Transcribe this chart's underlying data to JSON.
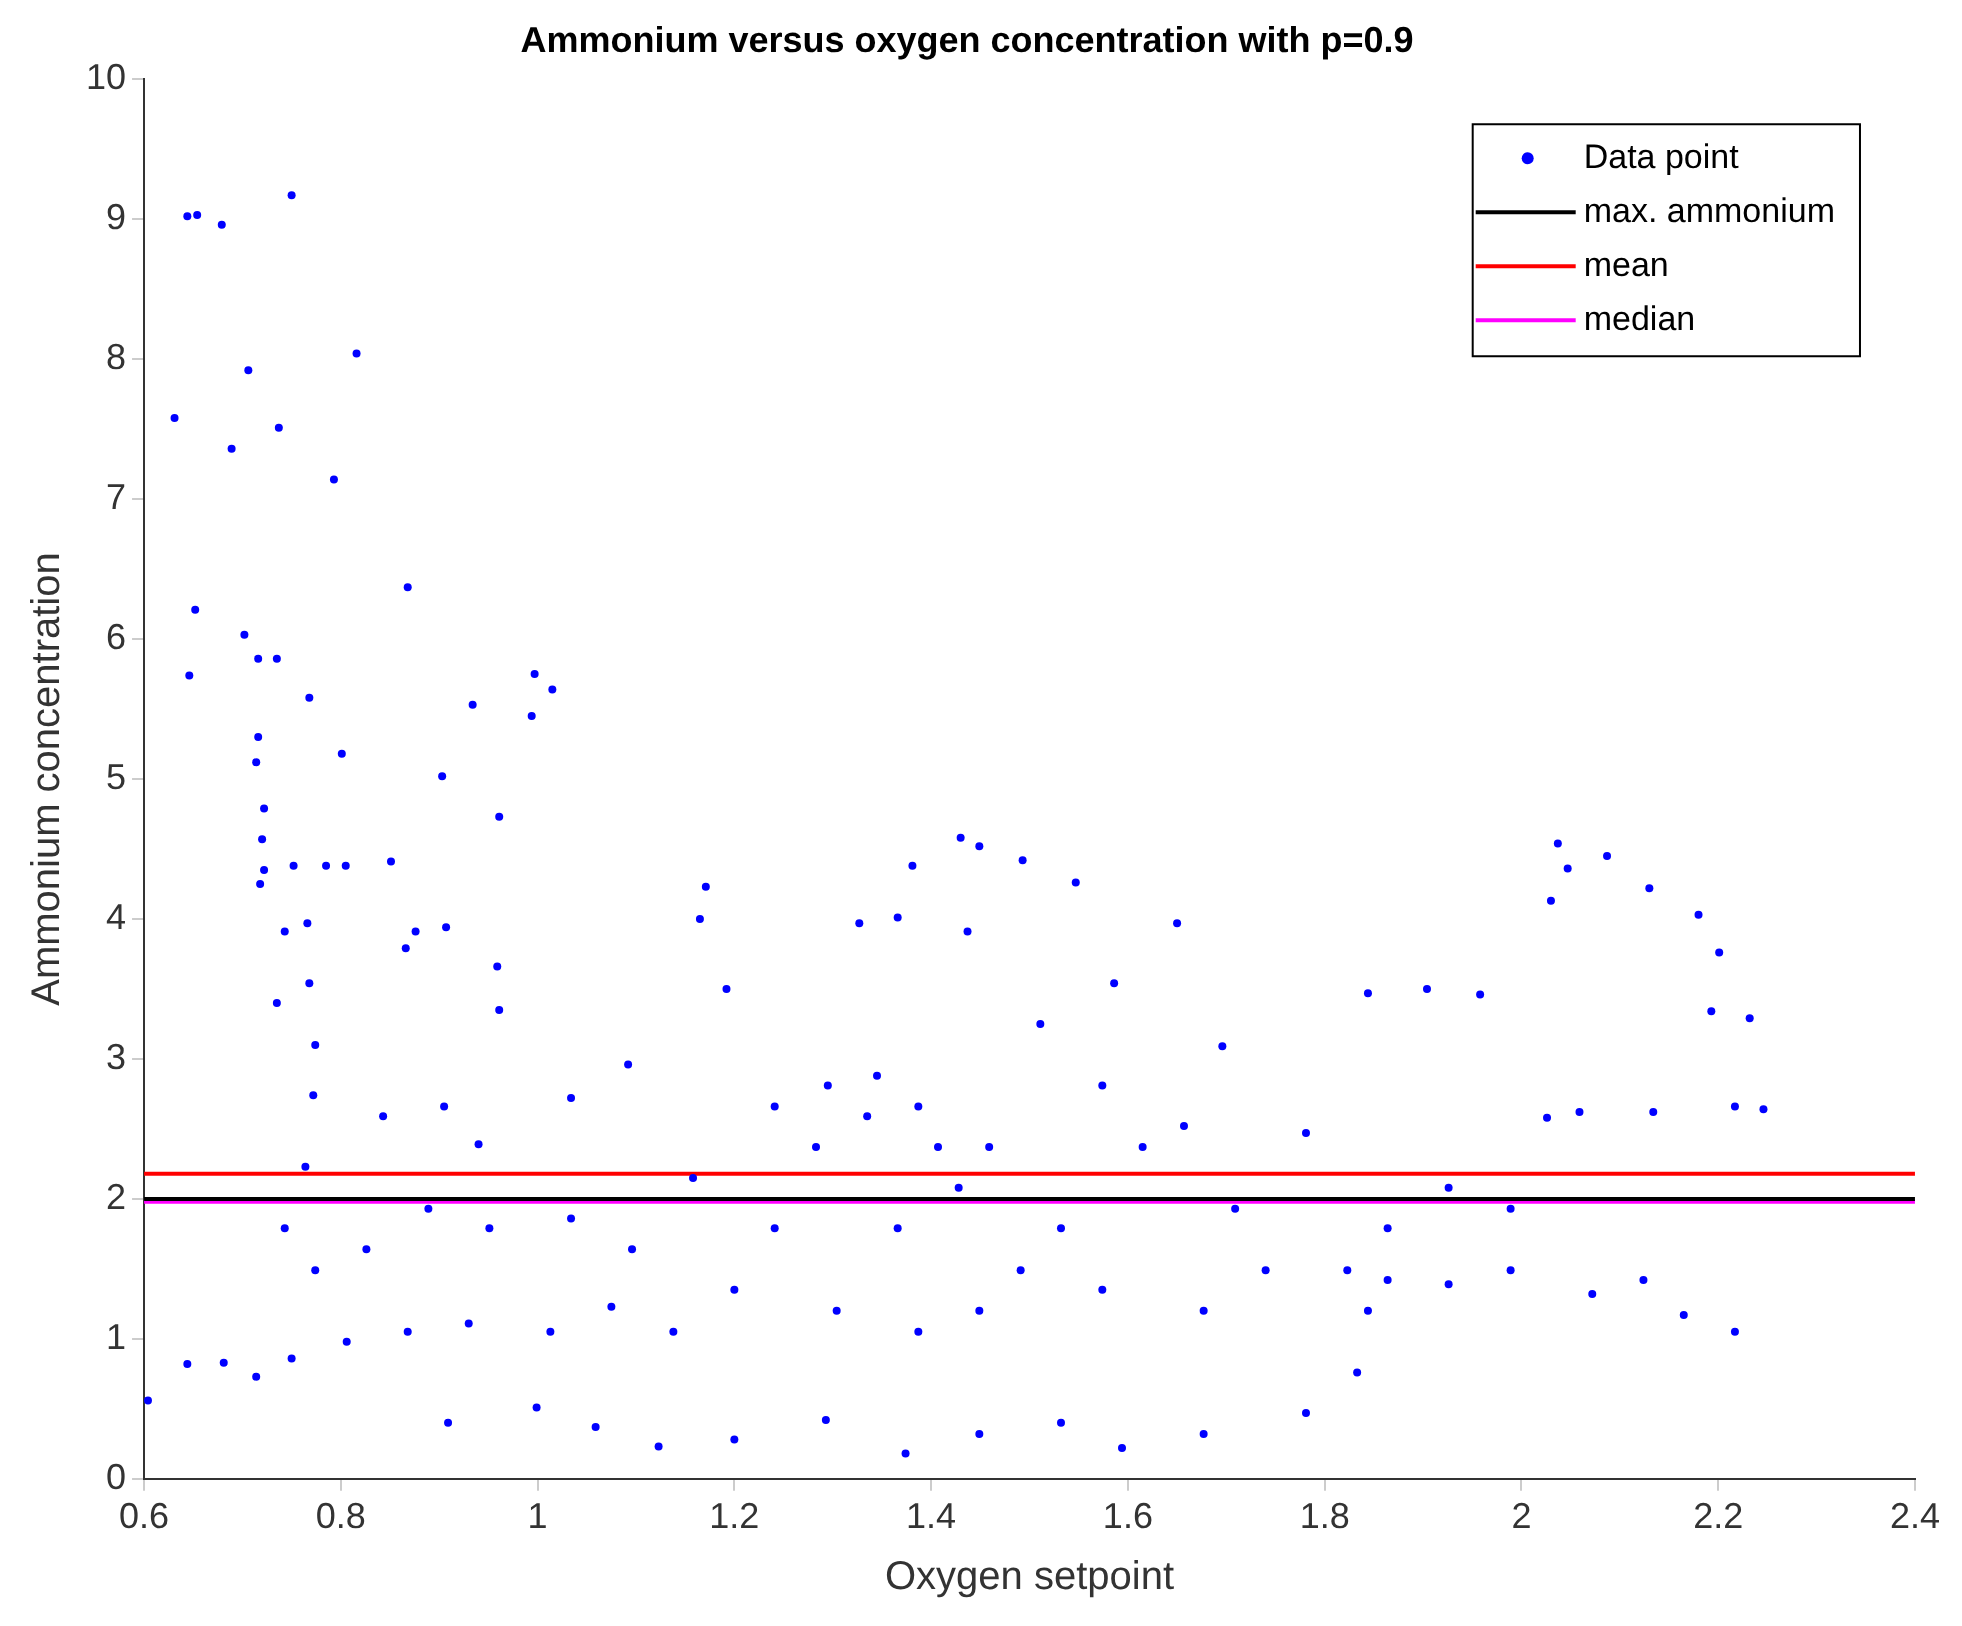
{
  "chart_data": {
    "type": "scatter",
    "title": "Ammonium versus oxygen concentration with p=0.9",
    "xlabel": "Oxygen setpoint",
    "ylabel": "Ammonium concentration",
    "xlim": [
      0.6,
      2.4
    ],
    "xticks": [
      0.6,
      0.8,
      1,
      1.2,
      1.4,
      1.6,
      1.8,
      2,
      2.2,
      2.4
    ],
    "ylim": [
      0,
      10
    ],
    "yticks": [
      0,
      1,
      2,
      3,
      4,
      5,
      6,
      7,
      8,
      9,
      10
    ],
    "grid": false,
    "legend": "top right",
    "marker": "circle",
    "series": [
      {
        "name": "Data point",
        "color": "#0000ff",
        "x": [
          0.644,
          0.654,
          0.679,
          0.75,
          0.631,
          0.706,
          0.689,
          0.737,
          0.816,
          0.793,
          0.652,
          0.646,
          0.702,
          0.716,
          0.735,
          0.768,
          0.868,
          0.801,
          0.716,
          0.714,
          0.722,
          0.72,
          0.722,
          0.718,
          0.752,
          0.785,
          0.805,
          0.851,
          0.903,
          0.934,
          0.997,
          1.015,
          0.994,
          0.961,
          0.743,
          0.766,
          0.735,
          0.768,
          0.774,
          0.866,
          0.876,
          0.907,
          0.959,
          0.961,
          0.772,
          0.764,
          0.843,
          0.905,
          0.94,
          1.034,
          1.092,
          1.192,
          1.171,
          1.165,
          1.295,
          1.381,
          1.366,
          1.43,
          1.449,
          1.493,
          1.547,
          1.437,
          1.327,
          1.586,
          1.65,
          1.696,
          1.844,
          1.904,
          1.958,
          2.03,
          2.037,
          2.047,
          2.087,
          2.13,
          2.18,
          2.201,
          2.193,
          2.232,
          2.246,
          2.217,
          2.134,
          2.059,
          2.026,
          0.604,
          0.644,
          0.681,
          0.714,
          0.75,
          0.806,
          0.868,
          0.93,
          1.013,
          1.075,
          0.909,
          0.999,
          1.059,
          1.123,
          1.2,
          1.293,
          1.374,
          1.449,
          1.532,
          1.594,
          1.677,
          1.781,
          1.833,
          1.844,
          1.823,
          1.864,
          1.926,
          1.989,
          2.072,
          2.124,
          2.165,
          2.217,
          0.743,
          0.774,
          0.826,
          0.889,
          0.951,
          1.034,
          1.096,
          1.158,
          1.241,
          1.283,
          1.335,
          1.387,
          1.428,
          1.459,
          1.491,
          1.532,
          1.574,
          1.615,
          1.657,
          1.709,
          1.74,
          1.781,
          1.864,
          1.926,
          1.989,
          1.304,
          1.387,
          1.449,
          1.574,
          1.677,
          1.2,
          1.138,
          1.366,
          1.407,
          1.511,
          1.345,
          1.241
        ],
        "values": [
          9.02,
          9.03,
          8.96,
          9.17,
          7.58,
          7.92,
          7.36,
          7.51,
          8.04,
          7.14,
          6.21,
          5.74,
          6.03,
          5.86,
          5.86,
          5.58,
          6.37,
          5.18,
          5.3,
          5.12,
          4.79,
          4.57,
          4.35,
          4.25,
          4.38,
          4.38,
          4.38,
          4.41,
          5.02,
          5.53,
          5.75,
          5.64,
          5.45,
          4.73,
          3.91,
          3.97,
          3.4,
          3.54,
          3.1,
          3.79,
          3.91,
          3.94,
          3.66,
          3.35,
          2.74,
          2.23,
          2.59,
          2.66,
          2.39,
          2.72,
          2.96,
          3.5,
          4.23,
          4,
          2.81,
          4.38,
          4.01,
          4.58,
          4.52,
          4.42,
          4.26,
          3.91,
          3.97,
          3.54,
          3.97,
          3.09,
          3.47,
          3.5,
          3.46,
          4.13,
          4.54,
          4.36,
          4.45,
          4.22,
          4.03,
          3.76,
          3.34,
          3.29,
          2.64,
          2.66,
          2.62,
          2.62,
          2.58,
          0.56,
          0.82,
          0.83,
          0.73,
          0.86,
          0.98,
          1.05,
          1.11,
          1.05,
          1.23,
          0.4,
          0.51,
          0.37,
          0.23,
          0.28,
          0.42,
          0.18,
          0.32,
          0.4,
          0.22,
          0.32,
          0.47,
          0.76,
          1.2,
          1.49,
          1.42,
          1.39,
          1.49,
          1.32,
          1.42,
          1.17,
          1.05,
          1.79,
          1.49,
          1.64,
          1.93,
          1.79,
          1.86,
          1.64,
          2.15,
          1.79,
          2.37,
          2.59,
          2.66,
          2.08,
          2.37,
          1.49,
          1.79,
          2.81,
          2.37,
          2.52,
          1.93,
          1.49,
          2.47,
          1.79,
          2.08,
          1.93,
          1.2,
          1.05,
          1.2,
          1.35,
          1.2,
          1.35,
          1.05,
          1.79,
          2.37,
          3.25,
          2.88,
          2.66
        ]
      }
    ],
    "ref_lines": [
      {
        "axis": "y",
        "value": 2,
        "label": "max. ammonium",
        "color": "#000000"
      },
      {
        "axis": "y",
        "value": 2.18,
        "label": "mean",
        "color": "#ff0000"
      },
      {
        "axis": "y",
        "value": 1.98,
        "label": "median",
        "color": "#ff00ff"
      }
    ]
  }
}
